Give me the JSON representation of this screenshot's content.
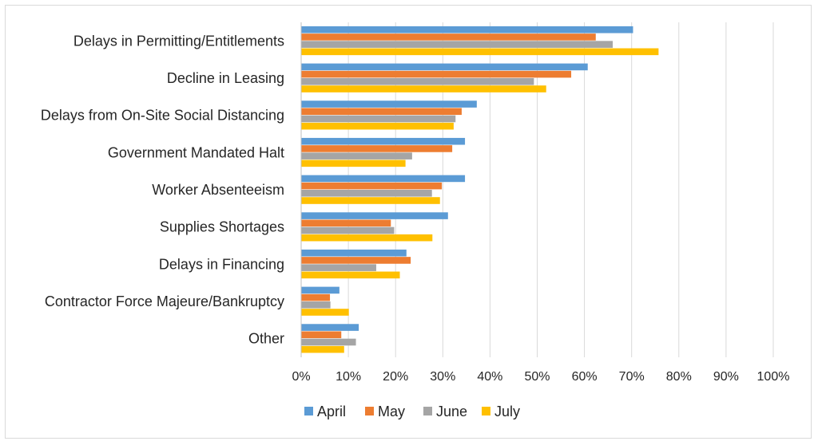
{
  "chart_data": {
    "type": "bar",
    "orientation": "horizontal",
    "categories": [
      "Delays in Permitting/Entitlements",
      "Decline in Leasing",
      "Delays from On-Site Social Distancing",
      "Government Mandated Halt",
      "Worker Absenteeism",
      "Supplies Shortages",
      "Delays in Financing",
      "Contractor Force Majeure/Bankruptcy",
      "Other"
    ],
    "series": [
      {
        "name": "April",
        "color": "#5B9BD5",
        "values": [
          70.3,
          60.7,
          37.2,
          34.7,
          34.7,
          31.1,
          22.3,
          8.1,
          12.2
        ]
      },
      {
        "name": "May",
        "color": "#ED7D31",
        "values": [
          62.4,
          57.2,
          34.0,
          32.0,
          29.8,
          19.0,
          23.2,
          6.1,
          8.5
        ]
      },
      {
        "name": "June",
        "color": "#A5A5A5",
        "values": [
          66.0,
          49.3,
          32.7,
          23.5,
          27.7,
          19.7,
          15.9,
          6.2,
          11.6
        ]
      },
      {
        "name": "July",
        "color": "#FFC000",
        "values": [
          75.7,
          51.9,
          32.3,
          22.1,
          29.4,
          27.8,
          20.9,
          10.1,
          9.1
        ]
      }
    ],
    "xlim": [
      0,
      100
    ],
    "ticks": [
      "0%",
      "10%",
      "20%",
      "30%",
      "40%",
      "50%",
      "60%",
      "70%",
      "80%",
      "90%",
      "100%"
    ],
    "grid": true,
    "legend": "bottom",
    "title": "",
    "xlabel": "",
    "ylabel": ""
  }
}
